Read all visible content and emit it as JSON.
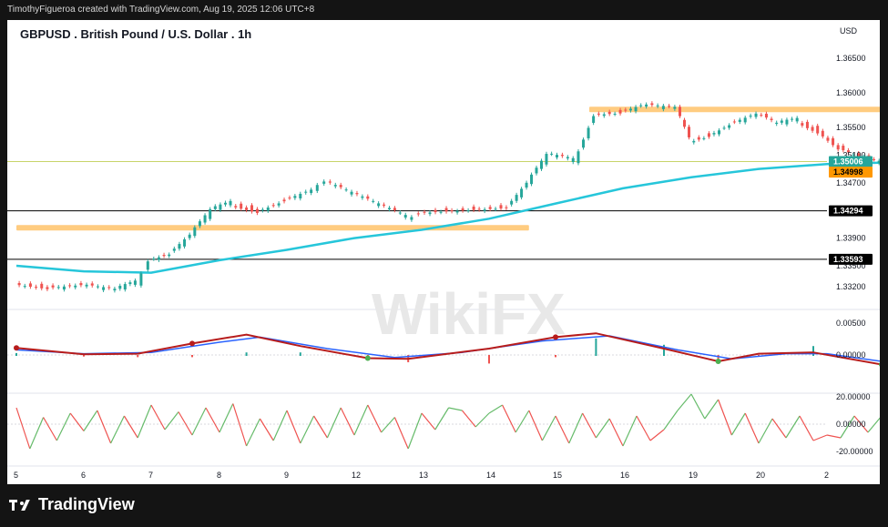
{
  "header": {
    "attribution": "TimothyFigueroa created with TradingView.com, Aug 19, 2025 12:06 UTC+8"
  },
  "footer": {
    "brand": "TradingView"
  },
  "watermark": "WikiFX",
  "colors": {
    "up": "#26a69a",
    "down": "#ef5350",
    "ma": "#26c6da",
    "zone": "#ffcc80",
    "macd_fast": "#4caf50",
    "macd_blue": "#2962ff",
    "macd_red": "#b71c1c",
    "rsi_up": "#66bb6a",
    "rsi_down": "#ef5350"
  },
  "chart_data": {
    "type": "candlestick",
    "title": "GBPUSD . British Pound / U.S. Dollar . 1h",
    "currency": "USD",
    "x_ticks": [
      "5",
      "6",
      "7",
      "8",
      "9",
      "12",
      "13",
      "14",
      "15",
      "16",
      "19",
      "20",
      "2"
    ],
    "y_ticks": [
      "1.36500",
      "1.36000",
      "1.35500",
      "1.35100",
      "1.34700",
      "1.33900",
      "1.33500",
      "1.33200"
    ],
    "price_tags": [
      {
        "label": "1.35006",
        "value": 1.35006,
        "color": "#26a69a"
      },
      {
        "label": "1.34998",
        "value": 1.34998,
        "color": "#ff9800"
      },
      {
        "label": "1.34294",
        "value": 1.34294,
        "color": "#000000"
      },
      {
        "label": "1.33593",
        "value": 1.33593,
        "color": "#000000"
      }
    ],
    "horizontal_lines": [
      1.35006,
      1.34294,
      1.33593
    ],
    "zones": [
      {
        "from_day": 5,
        "to_day": 12.6,
        "value": 1.3405
      },
      {
        "from_day": 13.5,
        "to_day": 18.8,
        "value": 1.3576
      }
    ],
    "price_series": [
      {
        "day": 5.0,
        "close": 1.3325
      },
      {
        "day": 5.5,
        "close": 1.3318
      },
      {
        "day": 6.0,
        "close": 1.3322
      },
      {
        "day": 6.5,
        "close": 1.3315
      },
      {
        "day": 6.8,
        "close": 1.3325
      },
      {
        "day": 7.0,
        "close": 1.336
      },
      {
        "day": 7.3,
        "close": 1.3368
      },
      {
        "day": 7.6,
        "close": 1.3395
      },
      {
        "day": 7.9,
        "close": 1.343
      },
      {
        "day": 8.2,
        "close": 1.344
      },
      {
        "day": 8.6,
        "close": 1.343
      },
      {
        "day": 9.0,
        "close": 1.3445
      },
      {
        "day": 9.4,
        "close": 1.346
      },
      {
        "day": 9.6,
        "close": 1.347
      },
      {
        "day": 10.8,
        "close": 1.342
      },
      {
        "day": 11.0,
        "close": 1.3428
      },
      {
        "day": 12.3,
        "close": 1.3435
      },
      {
        "day": 12.6,
        "close": 1.347
      },
      {
        "day": 12.9,
        "close": 1.351
      },
      {
        "day": 13.3,
        "close": 1.3502
      },
      {
        "day": 13.6,
        "close": 1.357
      },
      {
        "day": 14.0,
        "close": 1.3572
      },
      {
        "day": 14.3,
        "close": 1.3582
      },
      {
        "day": 14.8,
        "close": 1.3578
      },
      {
        "day": 15.0,
        "close": 1.3532
      },
      {
        "day": 15.3,
        "close": 1.354
      },
      {
        "day": 15.6,
        "close": 1.3555
      },
      {
        "day": 16.0,
        "close": 1.357
      },
      {
        "day": 16.3,
        "close": 1.3555
      },
      {
        "day": 16.6,
        "close": 1.356
      },
      {
        "day": 16.9,
        "close": 1.3545
      },
      {
        "day": 17.2,
        "close": 1.352
      },
      {
        "day": 17.5,
        "close": 1.3508
      },
      {
        "day": 17.8,
        "close": 1.35
      }
    ],
    "moving_average": [
      {
        "day": 5.0,
        "value": 1.335
      },
      {
        "day": 6.0,
        "value": 1.3342
      },
      {
        "day": 7.0,
        "value": 1.334
      },
      {
        "day": 8.0,
        "value": 1.3358
      },
      {
        "day": 9.0,
        "value": 1.3373
      },
      {
        "day": 10.0,
        "value": 1.339
      },
      {
        "day": 11.0,
        "value": 1.3402
      },
      {
        "day": 12.0,
        "value": 1.3418
      },
      {
        "day": 13.0,
        "value": 1.344
      },
      {
        "day": 14.0,
        "value": 1.3462
      },
      {
        "day": 15.0,
        "value": 1.3478
      },
      {
        "day": 16.0,
        "value": 1.349
      },
      {
        "day": 17.0,
        "value": 1.3497
      },
      {
        "day": 17.8,
        "value": 1.3499
      }
    ],
    "macd": {
      "y_ticks": [
        "0.00500",
        "0.00000"
      ],
      "fast": [
        {
          "day": 5.0,
          "value": 0.0011
        },
        {
          "day": 6.0,
          "value": 0.0001
        },
        {
          "day": 6.8,
          "value": 0.0002
        },
        {
          "day": 7.6,
          "value": 0.0018
        },
        {
          "day": 8.4,
          "value": 0.0032
        },
        {
          "day": 9.2,
          "value": 0.0014
        },
        {
          "day": 10.2,
          "value": -0.0005
        },
        {
          "day": 10.8,
          "value": -0.0006
        },
        {
          "day": 12.0,
          "value": 0.001
        },
        {
          "day": 13.0,
          "value": 0.0028
        },
        {
          "day": 13.6,
          "value": 0.0034
        },
        {
          "day": 14.6,
          "value": 0.001
        },
        {
          "day": 15.4,
          "value": -0.001
        },
        {
          "day": 16.0,
          "value": 0.0002
        },
        {
          "day": 16.8,
          "value": 0.0004
        },
        {
          "day": 17.8,
          "value": -0.0015
        }
      ],
      "slow": [
        {
          "day": 5.0,
          "value": 0.0008
        },
        {
          "day": 6.0,
          "value": 0.0002
        },
        {
          "day": 7.0,
          "value": 0.0004
        },
        {
          "day": 8.0,
          "value": 0.002
        },
        {
          "day": 8.6,
          "value": 0.0028
        },
        {
          "day": 9.6,
          "value": 0.001
        },
        {
          "day": 10.6,
          "value": -0.0004
        },
        {
          "day": 11.6,
          "value": 0.0004
        },
        {
          "day": 12.8,
          "value": 0.0022
        },
        {
          "day": 13.8,
          "value": 0.003
        },
        {
          "day": 14.8,
          "value": 0.0008
        },
        {
          "day": 15.6,
          "value": -0.0006
        },
        {
          "day": 16.4,
          "value": 0.0002
        },
        {
          "day": 17.0,
          "value": 0.0002
        },
        {
          "day": 17.8,
          "value": -0.001
        }
      ]
    },
    "oscillator": {
      "y_ticks": [
        "20.00000",
        "0.00000",
        "-20.00000"
      ],
      "values": [
        {
          "day": 5.0,
          "value": 12
        },
        {
          "day": 5.2,
          "value": -18
        },
        {
          "day": 5.4,
          "value": 5
        },
        {
          "day": 5.6,
          "value": -12
        },
        {
          "day": 5.8,
          "value": 8
        },
        {
          "day": 6.0,
          "value": -5
        },
        {
          "day": 6.2,
          "value": 10
        },
        {
          "day": 6.4,
          "value": -14
        },
        {
          "day": 6.6,
          "value": 6
        },
        {
          "day": 6.8,
          "value": -10
        },
        {
          "day": 7.0,
          "value": 14
        },
        {
          "day": 7.2,
          "value": -4
        },
        {
          "day": 7.4,
          "value": 9
        },
        {
          "day": 7.6,
          "value": -8
        },
        {
          "day": 7.8,
          "value": 12
        },
        {
          "day": 8.0,
          "value": -6
        },
        {
          "day": 8.2,
          "value": 15
        },
        {
          "day": 8.4,
          "value": -16
        },
        {
          "day": 8.6,
          "value": 4
        },
        {
          "day": 8.8,
          "value": -12
        },
        {
          "day": 9.0,
          "value": 10
        },
        {
          "day": 9.2,
          "value": -14
        },
        {
          "day": 9.4,
          "value": 6
        },
        {
          "day": 9.6,
          "value": -10
        },
        {
          "day": 9.8,
          "value": 12
        },
        {
          "day": 10.0,
          "value": -8
        },
        {
          "day": 10.2,
          "value": 14
        },
        {
          "day": 10.4,
          "value": -6
        },
        {
          "day": 10.6,
          "value": 5
        },
        {
          "day": 10.8,
          "value": -18
        },
        {
          "day": 11.0,
          "value": 8
        },
        {
          "day": 11.2,
          "value": -4
        },
        {
          "day": 11.4,
          "value": 12
        },
        {
          "day": 11.6,
          "value": 10
        },
        {
          "day": 11.8,
          "value": -2
        },
        {
          "day": 12.0,
          "value": 8
        },
        {
          "day": 12.2,
          "value": 14
        },
        {
          "day": 12.4,
          "value": -6
        },
        {
          "day": 12.6,
          "value": 10
        },
        {
          "day": 12.8,
          "value": -12
        },
        {
          "day": 13.0,
          "value": 6
        },
        {
          "day": 13.2,
          "value": -14
        },
        {
          "day": 13.4,
          "value": 8
        },
        {
          "day": 13.6,
          "value": -10
        },
        {
          "day": 13.8,
          "value": 4
        },
        {
          "day": 14.0,
          "value": -16
        },
        {
          "day": 14.2,
          "value": 6
        },
        {
          "day": 14.4,
          "value": -12
        },
        {
          "day": 14.6,
          "value": -4
        },
        {
          "day": 14.8,
          "value": 10
        },
        {
          "day": 15.0,
          "value": 22
        },
        {
          "day": 15.2,
          "value": 4
        },
        {
          "day": 15.4,
          "value": 18
        },
        {
          "day": 15.6,
          "value": -8
        },
        {
          "day": 15.8,
          "value": 8
        },
        {
          "day": 16.0,
          "value": -14
        },
        {
          "day": 16.2,
          "value": 4
        },
        {
          "day": 16.4,
          "value": -10
        },
        {
          "day": 16.6,
          "value": 6
        },
        {
          "day": 16.8,
          "value": -12
        },
        {
          "day": 17.0,
          "value": -8
        },
        {
          "day": 17.2,
          "value": -10
        },
        {
          "day": 17.4,
          "value": 6
        },
        {
          "day": 17.6,
          "value": -6
        },
        {
          "day": 17.8,
          "value": 6
        }
      ]
    }
  }
}
